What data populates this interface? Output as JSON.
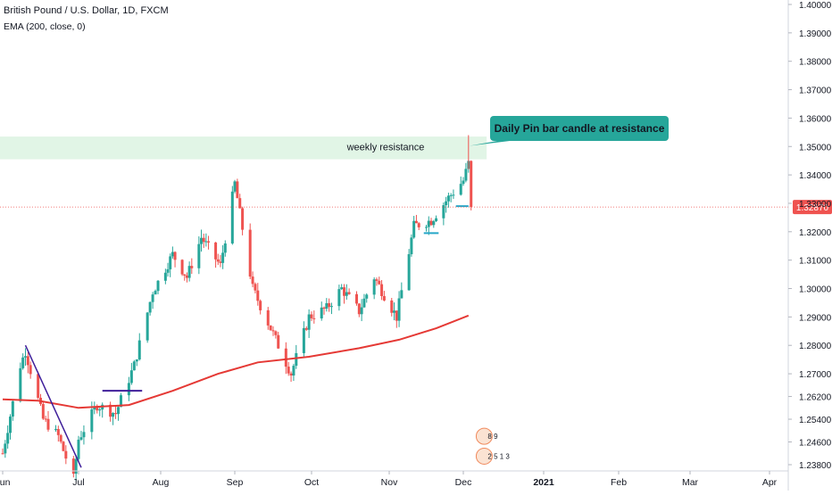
{
  "header": {
    "symbol_title": "British Pound / U.S. Dollar, 1D, FXCM",
    "indicator_label": "EMA (200, close, 0)"
  },
  "chart_data": {
    "type": "candlestick",
    "title": "British Pound / U.S. Dollar, 1D, FXCM",
    "ylim": [
      1.237,
      1.401
    ],
    "y_ticks": [
      "1.40000",
      "1.39000",
      "1.38000",
      "1.37000",
      "1.36000",
      "1.35000",
      "1.34000",
      "1.33000",
      "1.32000",
      "1.31000",
      "1.30000",
      "1.29000",
      "1.28000",
      "1.27000",
      "1.26200",
      "1.25400",
      "1.24600",
      "1.23800"
    ],
    "x_ticks": [
      {
        "label": "Jun",
        "date": "2020-06-01"
      },
      {
        "label": "Jul",
        "date": "2020-07-01"
      },
      {
        "label": "Aug",
        "date": "2020-08-01"
      },
      {
        "label": "Sep",
        "date": "2020-09-01"
      },
      {
        "label": "Oct",
        "date": "2020-10-01"
      },
      {
        "label": "Nov",
        "date": "2020-11-01"
      },
      {
        "label": "Dec",
        "date": "2020-12-01"
      },
      {
        "label": "2021",
        "date": "2021-01-01",
        "bold": true
      },
      {
        "label": "Feb",
        "date": "2021-02-01"
      },
      {
        "label": "Mar",
        "date": "2021-03-01"
      },
      {
        "label": "Apr",
        "date": "2021-04-01"
      }
    ],
    "last_price": "1.32870",
    "last_price_value": 1.3287,
    "colors": {
      "up": "#26a69a",
      "down": "#ef5350",
      "ema": "#e53935",
      "zone": "#e1f5e6",
      "callout": "#26a69a",
      "trendline": "#3f1f9a"
    },
    "price_path": [
      [
        "2020-06-01",
        1.242
      ],
      [
        "2020-06-08",
        1.273
      ],
      [
        "2020-06-10",
        1.278
      ],
      [
        "2020-06-17",
        1.254
      ],
      [
        "2020-06-23",
        1.248
      ],
      [
        "2020-06-29",
        1.233
      ],
      [
        "2020-07-01",
        1.247
      ],
      [
        "2020-07-08",
        1.259
      ],
      [
        "2020-07-15",
        1.256
      ],
      [
        "2020-07-22",
        1.273
      ],
      [
        "2020-07-29",
        1.299
      ],
      [
        "2020-08-06",
        1.312
      ],
      [
        "2020-08-12",
        1.304
      ],
      [
        "2020-08-18",
        1.318
      ],
      [
        "2020-08-26",
        1.308
      ],
      [
        "2020-09-01",
        1.337
      ],
      [
        "2020-09-08",
        1.3
      ],
      [
        "2020-09-14",
        1.288
      ],
      [
        "2020-09-23",
        1.27
      ],
      [
        "2020-09-30",
        1.29
      ],
      [
        "2020-10-07",
        1.293
      ],
      [
        "2020-10-13",
        1.3
      ],
      [
        "2020-10-20",
        1.292
      ],
      [
        "2020-10-26",
        1.304
      ],
      [
        "2020-11-04",
        1.29
      ],
      [
        "2020-11-11",
        1.322
      ],
      [
        "2020-11-18",
        1.324
      ],
      [
        "2020-11-25",
        1.332
      ],
      [
        "2020-12-01",
        1.338
      ],
      [
        "2020-12-03",
        1.344
      ],
      [
        "2020-12-04",
        1.3287
      ]
    ],
    "ema_200": [
      [
        "2020-06-01",
        1.261
      ],
      [
        "2020-06-15",
        1.2605
      ],
      [
        "2020-07-01",
        1.258
      ],
      [
        "2020-07-20",
        1.259
      ],
      [
        "2020-08-06",
        1.264
      ],
      [
        "2020-08-25",
        1.27
      ],
      [
        "2020-09-10",
        1.274
      ],
      [
        "2020-09-30",
        1.276
      ],
      [
        "2020-10-20",
        1.279
      ],
      [
        "2020-11-05",
        1.282
      ],
      [
        "2020-11-20",
        1.286
      ],
      [
        "2020-12-03",
        1.2905
      ]
    ],
    "resistance_zone": {
      "label": "weekly resistance",
      "low": 1.3455,
      "high": 1.3535,
      "start": "2020-05-25",
      "end": "2020-12-10"
    },
    "annotation": {
      "text": "Daily Pin bar candle at resistance",
      "date": "2020-12-02",
      "price": 1.354
    },
    "trendline": {
      "start": [
        "2020-06-10",
        1.28
      ],
      "end": [
        "2020-07-02",
        1.237
      ]
    },
    "horizontal_lines": [
      {
        "start": "2020-07-10",
        "end": "2020-07-25",
        "price": 1.264,
        "color": "#3f1f9a"
      },
      {
        "start": "2020-11-15",
        "end": "2020-11-21",
        "price": 1.3195,
        "color": "#26a6c8"
      },
      {
        "start": "2020-11-28",
        "end": "2020-12-03",
        "price": 1.329,
        "color": "#26a6c8"
      }
    ],
    "event_badges": [
      {
        "date": "2020-12-07",
        "price": 1.248,
        "text": "8 9"
      },
      {
        "date": "2020-12-07",
        "price": 1.241,
        "text": "2 5 1 3"
      }
    ]
  }
}
